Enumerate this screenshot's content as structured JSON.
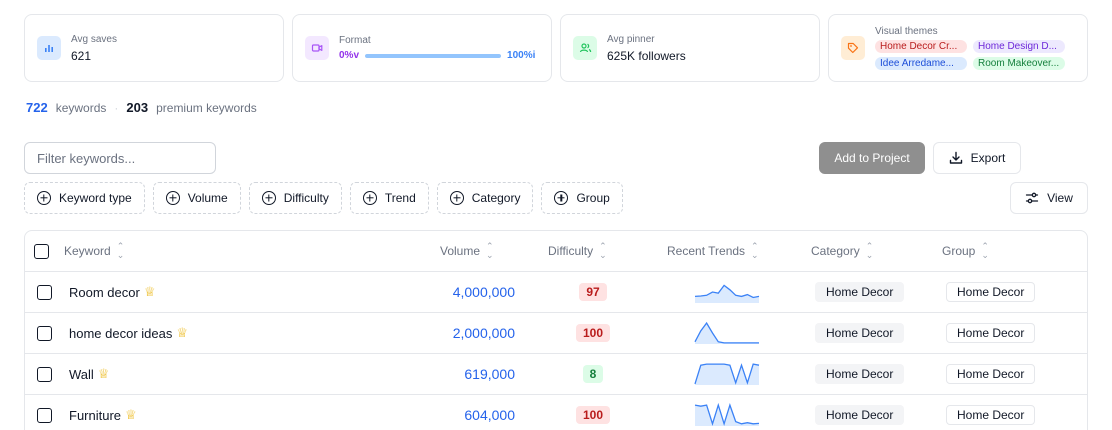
{
  "stats": {
    "avg_saves": {
      "label": "Avg saves",
      "value": "621",
      "icon": "bar-chart-icon",
      "color": "#3b82f6"
    },
    "format": {
      "label": "Format",
      "left": "0%v",
      "right": "100%i",
      "progress_percent": 100,
      "icon": "video-icon",
      "color": "#a855f7"
    },
    "avg_pinner": {
      "label": "Avg pinner",
      "value": "625K followers",
      "icon": "users-icon",
      "color": "#22c55e"
    },
    "visual_themes": {
      "label": "Visual themes",
      "icon": "tag-icon",
      "color": "#f97316",
      "tags": [
        {
          "text": "Home Decor Cr...",
          "bg": "#fee2e2",
          "fg": "#b91c1c"
        },
        {
          "text": "Home Design D...",
          "bg": "#ede9fe",
          "fg": "#6d28d9"
        },
        {
          "text": "Idee Arredame...",
          "bg": "#dbeafe",
          "fg": "#1d4ed8"
        },
        {
          "text": "Room Makeover...",
          "bg": "#dcfce7",
          "fg": "#15803d"
        }
      ]
    }
  },
  "counts": {
    "keywords": "722",
    "keywords_label": "keywords",
    "premium": "203",
    "premium_label": "premium keywords"
  },
  "filter": {
    "placeholder": "Filter keywords..."
  },
  "buttons": {
    "add_to_project": "Add to Project",
    "export": "Export",
    "view": "View"
  },
  "chips": [
    "Keyword type",
    "Volume",
    "Difficulty",
    "Trend",
    "Category",
    "Group"
  ],
  "table": {
    "headers": {
      "keyword": "Keyword",
      "volume": "Volume",
      "difficulty": "Difficulty",
      "trends": "Recent Trends",
      "category": "Category",
      "group": "Group"
    },
    "rows": [
      {
        "keyword": "Room decor",
        "volume": "4,000,000",
        "difficulty": "97",
        "difficulty_level": "high",
        "trend": [
          0.3,
          0.32,
          0.35,
          0.5,
          0.45,
          0.8,
          0.6,
          0.35,
          0.3,
          0.38,
          0.25,
          0.3
        ],
        "category": "Home Decor",
        "group": "Home Decor"
      },
      {
        "keyword": "home decor ideas",
        "volume": "2,000,000",
        "difficulty": "100",
        "difficulty_level": "high",
        "trend": [
          0.1,
          0.6,
          0.95,
          0.5,
          0.1,
          0.05,
          0.05,
          0.05,
          0.05,
          0.05,
          0.05,
          0.05
        ],
        "category": "Home Decor",
        "group": "Home Decor"
      },
      {
        "keyword": "Wall",
        "volume": "619,000",
        "difficulty": "8",
        "difficulty_level": "low",
        "trend": [
          0.05,
          0.9,
          0.95,
          0.95,
          0.95,
          0.95,
          0.9,
          0.1,
          0.9,
          0.1,
          0.95,
          0.9
        ],
        "category": "Home Decor",
        "group": "Home Decor"
      },
      {
        "keyword": "Furniture",
        "volume": "604,000",
        "difficulty": "100",
        "difficulty_level": "high",
        "trend": [
          0.95,
          0.9,
          0.95,
          0.1,
          0.95,
          0.1,
          0.95,
          0.2,
          0.1,
          0.15,
          0.1,
          0.12
        ],
        "category": "Home Decor",
        "group": "Home Decor"
      }
    ]
  },
  "colors": {
    "difficulty_high_bg": "#fee2e2",
    "difficulty_high_fg": "#b91c1c",
    "difficulty_low_bg": "#dcfce7",
    "difficulty_low_fg": "#15803d",
    "trend_line": "#3b82f6",
    "trend_fill": "#dbeafe",
    "crown": "#eab308"
  }
}
